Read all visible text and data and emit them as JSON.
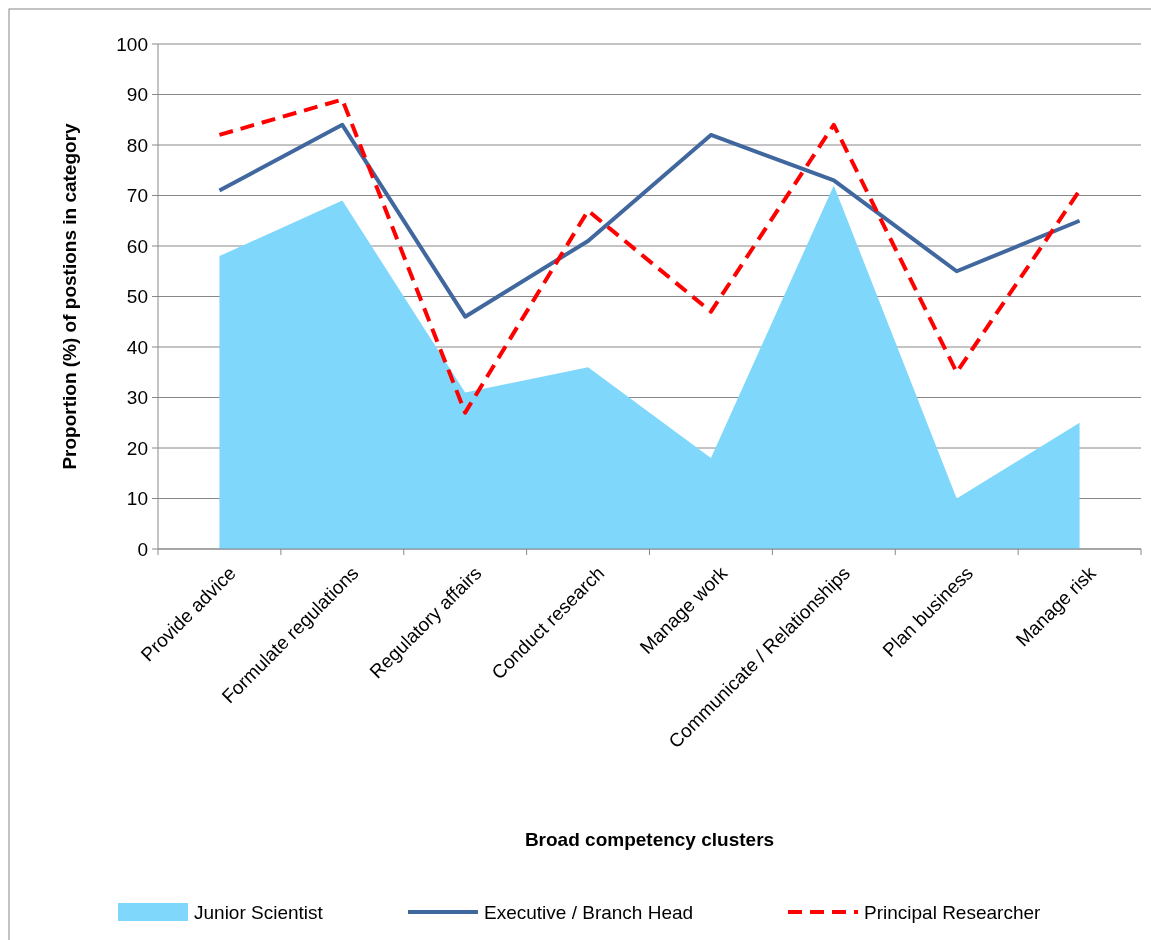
{
  "chart_data": {
    "type": "line",
    "xlabel": "Broad competency clusters",
    "ylabel": "Proportion (%) of postions in category",
    "categories": [
      "Provide advice",
      "Formulate regulations",
      "Regulatory affairs",
      "Conduct research",
      "Manage work",
      "Communicate / Relationships",
      "Plan business",
      "Manage risk"
    ],
    "series": [
      {
        "name": "Junior Scientist",
        "type": "area",
        "color": "#7fd7fc",
        "values": [
          58,
          69,
          31,
          36,
          18,
          72,
          10,
          25
        ]
      },
      {
        "name": "Executive / Branch Head",
        "type": "line",
        "color": "#41689e",
        "line_style": "solid",
        "values": [
          71,
          84,
          46,
          61,
          82,
          73,
          55,
          65
        ]
      },
      {
        "name": "Principal Researcher",
        "type": "line",
        "color": "#ff0000",
        "line_style": "dashed",
        "values": [
          82,
          89,
          27,
          67,
          47,
          84,
          35,
          71
        ]
      }
    ],
    "ylim": [
      0,
      100
    ],
    "yticks": [
      0,
      10,
      20,
      30,
      40,
      50,
      60,
      70,
      80,
      90,
      100
    ],
    "grid": "y",
    "legend": "bottom"
  }
}
